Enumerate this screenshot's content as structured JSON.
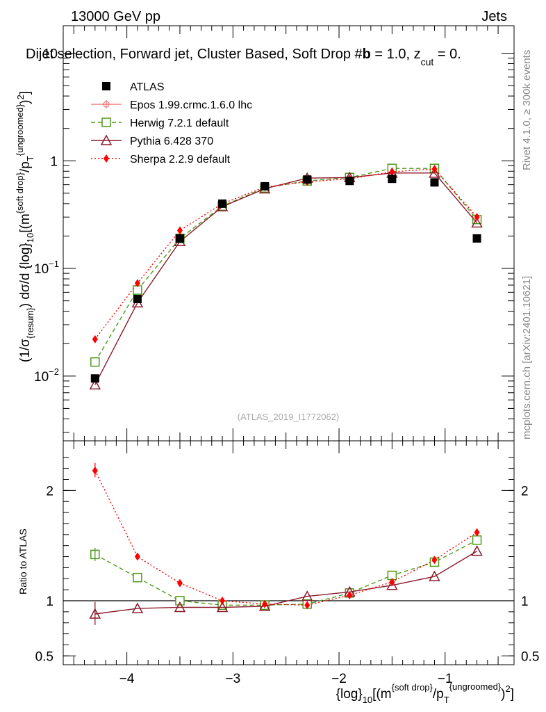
{
  "header": {
    "left": "13000 GeV pp",
    "right": "Jets",
    "selection": "Dijet selection, Forward jet, Cluster Based, Soft Drop #b = 1.0, z_cut = 0.",
    "selection_main": "Dijet selection, Forward jet, Cluster Based, Soft Drop #",
    "selection_tail_beta": "b",
    "selection_tail_eq": " = 1.0, z",
    "selection_tail_sub": "cut",
    "selection_tail_end": " = 0."
  },
  "side_labels": {
    "rivet": "Rivet 4.1.0, ≥ 300k events",
    "mcplots": "mcplots.cern.ch [arXiv:2401.10621]"
  },
  "watermark": "(ATLAS_2019_I1772062)",
  "colors": {
    "atlas": "#000000",
    "epos": "#f08080",
    "herwig": "#4c9a1a",
    "pythia": "#8b1a2b",
    "sherpa": "#ff0000"
  },
  "chart_data": [
    {
      "type": "scatter",
      "panel": "main",
      "yscale": "log",
      "xlim": [
        -4.6,
        -0.35
      ],
      "ylim": [
        0.0025,
        18
      ],
      "ylabel": "(1/σ_{resum}) dσ/d {log}_10[(m^{soft drop}/p_T^{ungroomed})^2]",
      "y_ticks": [
        {
          "value": 0.01,
          "base": "10",
          "exp": "−2"
        },
        {
          "value": 0.1,
          "base": "10",
          "exp": "−1"
        },
        {
          "value": 1,
          "label": "1"
        },
        {
          "value": 10,
          "label": "10"
        }
      ],
      "x": [
        -4.3,
        -3.9,
        -3.5,
        -3.1,
        -2.7,
        -2.3,
        -1.9,
        -1.5,
        -1.1,
        -0.7
      ],
      "series": [
        {
          "name": "ATLAS",
          "key": "atlas",
          "marker": "square-filled",
          "values": [
            0.0095,
            0.052,
            0.19,
            0.4,
            0.58,
            0.67,
            0.65,
            0.68,
            0.63,
            0.19
          ]
        },
        {
          "name": "Epos 1.99.crmc.1.6.0 lhc",
          "key": "epos",
          "marker": "plus-circle",
          "line": "solid",
          "values": []
        },
        {
          "name": "Herwig 7.2.1 default",
          "key": "herwig",
          "marker": "square-open",
          "line": "dashed",
          "values": [
            0.0135,
            0.063,
            0.19,
            0.38,
            0.56,
            0.65,
            0.7,
            0.85,
            0.85,
            0.285
          ]
        },
        {
          "name": "Pythia 6.428 370",
          "key": "pythia",
          "marker": "triangle-open",
          "line": "solid",
          "values": [
            0.0083,
            0.048,
            0.178,
            0.375,
            0.55,
            0.69,
            0.7,
            0.77,
            0.77,
            0.265
          ]
        },
        {
          "name": "Sherpa 2.2.9 default",
          "key": "sherpa",
          "marker": "diamond-filled",
          "line": "dotted",
          "values": [
            0.022,
            0.073,
            0.225,
            0.4,
            0.57,
            0.64,
            0.68,
            0.79,
            0.84,
            0.3
          ]
        }
      ]
    },
    {
      "type": "scatter",
      "panel": "ratio",
      "ylabel": "Ratio to ATLAS",
      "xlim": [
        -4.6,
        -0.35
      ],
      "ylim": [
        0.42,
        2.45
      ],
      "reference": 1,
      "y_ticks": [
        {
          "value": 0.5,
          "label": "0.5"
        },
        {
          "value": 1,
          "label": "1"
        },
        {
          "value": 2,
          "label": "2"
        }
      ],
      "x_ticks": [
        {
          "value": -4,
          "label": "−4"
        },
        {
          "value": -3,
          "label": "−3"
        },
        {
          "value": -2,
          "label": "−2"
        },
        {
          "value": -1,
          "label": "−1"
        }
      ],
      "xlabel": "{log}_10[(m^{soft drop}/p_T^{ungroomed})^2]",
      "x": [
        -4.3,
        -3.9,
        -3.5,
        -3.1,
        -2.7,
        -2.3,
        -1.9,
        -1.5,
        -1.1,
        -0.7
      ],
      "series": [
        {
          "name": "Herwig 7.2.1 default",
          "key": "herwig",
          "marker": "square-open",
          "line": "dashed",
          "values": [
            1.42,
            1.21,
            1.0,
            0.96,
            0.96,
            0.97,
            1.07,
            1.23,
            1.35,
            1.55
          ]
        },
        {
          "name": "Pythia 6.428 370",
          "key": "pythia",
          "marker": "triangle-open",
          "line": "solid",
          "values": [
            0.88,
            0.93,
            0.94,
            0.94,
            0.95,
            1.04,
            1.08,
            1.14,
            1.22,
            1.45
          ]
        },
        {
          "name": "Sherpa 2.2.9 default",
          "key": "sherpa",
          "marker": "diamond-filled",
          "line": "dotted",
          "values": [
            2.18,
            1.4,
            1.16,
            1.0,
            0.97,
            0.96,
            1.05,
            1.17,
            1.37,
            1.62
          ]
        }
      ]
    }
  ]
}
